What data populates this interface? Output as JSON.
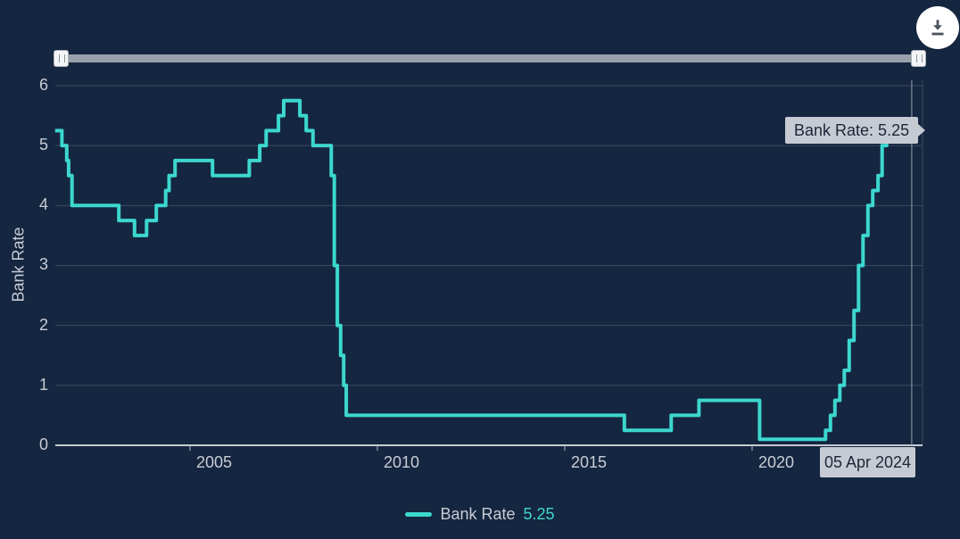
{
  "chart_data": {
    "type": "line",
    "step": true,
    "y_axis_title": "Bank Rate",
    "y_ticks": [
      0,
      1,
      2,
      3,
      4,
      5,
      6
    ],
    "ylim": [
      0,
      6
    ],
    "x_tick_labels": [
      "2005",
      "2010",
      "2015",
      "2020"
    ],
    "x_tick_years": [
      2005,
      2010,
      2015,
      2020
    ],
    "x_range_years": [
      2001.4,
      2024.45
    ],
    "grid": "horizontal-only",
    "legend_position": "bottom",
    "series": [
      {
        "name": "Bank Rate",
        "current_value": 5.25,
        "points": [
          [
            2001.4,
            5.25
          ],
          [
            2001.58,
            5.0
          ],
          [
            2001.71,
            4.75
          ],
          [
            2001.76,
            4.5
          ],
          [
            2001.85,
            4.0
          ],
          [
            2003.1,
            3.75
          ],
          [
            2003.52,
            3.5
          ],
          [
            2003.84,
            3.75
          ],
          [
            2004.1,
            4.0
          ],
          [
            2004.35,
            4.25
          ],
          [
            2004.44,
            4.5
          ],
          [
            2004.6,
            4.75
          ],
          [
            2005.6,
            4.5
          ],
          [
            2006.58,
            4.75
          ],
          [
            2006.86,
            5.0
          ],
          [
            2007.03,
            5.25
          ],
          [
            2007.36,
            5.5
          ],
          [
            2007.5,
            5.75
          ],
          [
            2007.93,
            5.5
          ],
          [
            2008.1,
            5.25
          ],
          [
            2008.28,
            5.0
          ],
          [
            2008.77,
            4.5
          ],
          [
            2008.85,
            3.0
          ],
          [
            2008.93,
            2.0
          ],
          [
            2009.02,
            1.5
          ],
          [
            2009.1,
            1.0
          ],
          [
            2009.17,
            0.5
          ],
          [
            2016.59,
            0.25
          ],
          [
            2017.84,
            0.5
          ],
          [
            2018.58,
            0.75
          ],
          [
            2020.2,
            0.1
          ],
          [
            2021.96,
            0.25
          ],
          [
            2022.09,
            0.5
          ],
          [
            2022.21,
            0.75
          ],
          [
            2022.34,
            1.0
          ],
          [
            2022.46,
            1.25
          ],
          [
            2022.59,
            1.75
          ],
          [
            2022.72,
            2.25
          ],
          [
            2022.84,
            3.0
          ],
          [
            2022.96,
            3.5
          ],
          [
            2023.09,
            4.0
          ],
          [
            2023.22,
            4.25
          ],
          [
            2023.36,
            4.5
          ],
          [
            2023.47,
            5.0
          ],
          [
            2023.59,
            5.25
          ],
          [
            2024.26,
            5.25
          ]
        ]
      }
    ]
  },
  "tooltip": {
    "text": "Bank Rate: 5.25",
    "date": "05 Apr 2024"
  },
  "legend": {
    "label": "Bank Rate",
    "value": "5.25"
  },
  "icons": {
    "download": "download-icon",
    "slider_grip": "grip-lines-icon"
  },
  "colors": {
    "background": "#152640",
    "line": "#3CD7CF",
    "grid": "#3A4A60",
    "axis_line": "#C6CBD3",
    "tick_mark": "#B7BDC5",
    "label_text": "#C8CDD5",
    "tooltip_bg": "#C6CBD3",
    "tooltip_text": "#1C2637",
    "crosshair": "#99A2AD",
    "slider_track": "#98A1AB",
    "download_icon": "#4C545E"
  }
}
